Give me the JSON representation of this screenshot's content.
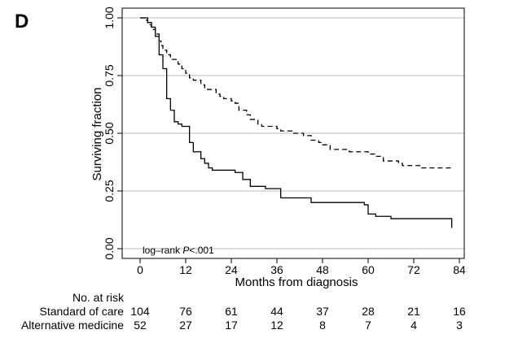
{
  "panel_label": "D",
  "chart_data": {
    "type": "line",
    "subtype": "kaplan-meier",
    "xlabel": "Months from diagnosis",
    "ylabel": "Surviving fraction",
    "xlim": [
      0,
      84
    ],
    "ylim": [
      0,
      1
    ],
    "x_ticks": [
      "0",
      "12",
      "24",
      "36",
      "48",
      "60",
      "72",
      "84"
    ],
    "y_ticks": [
      "0.00",
      "0.25",
      "0.50",
      "0.75",
      "1.00"
    ],
    "grid": "horizontal",
    "annotation": {
      "prefix": "log–rank ",
      "italic": "P",
      "suffix": "<.001"
    },
    "series": [
      {
        "style": "dashed",
        "color": "#000000",
        "points": [
          [
            0,
            1.0
          ],
          [
            1.5,
            0.99
          ],
          [
            2,
            0.97
          ],
          [
            3,
            0.96
          ],
          [
            3.5,
            0.95
          ],
          [
            4,
            0.93
          ],
          [
            5,
            0.9
          ],
          [
            5.5,
            0.88
          ],
          [
            6,
            0.86
          ],
          [
            7,
            0.84
          ],
          [
            8,
            0.82
          ],
          [
            10,
            0.8
          ],
          [
            11,
            0.78
          ],
          [
            12,
            0.76
          ],
          [
            13,
            0.74
          ],
          [
            14,
            0.73
          ],
          [
            16,
            0.71
          ],
          [
            17,
            0.69
          ],
          [
            20,
            0.67
          ],
          [
            21,
            0.66
          ],
          [
            22,
            0.65
          ],
          [
            24,
            0.64
          ],
          [
            25,
            0.63
          ],
          [
            26,
            0.6
          ],
          [
            28,
            0.58
          ],
          [
            29,
            0.56
          ],
          [
            31,
            0.54
          ],
          [
            32,
            0.53
          ],
          [
            36,
            0.52
          ],
          [
            37,
            0.51
          ],
          [
            40,
            0.5
          ],
          [
            43,
            0.49
          ],
          [
            45,
            0.47
          ],
          [
            47,
            0.46
          ],
          [
            48,
            0.45
          ],
          [
            50,
            0.43
          ],
          [
            55,
            0.42
          ],
          [
            60,
            0.41
          ],
          [
            62,
            0.4
          ],
          [
            64,
            0.38
          ],
          [
            68,
            0.37
          ],
          [
            69,
            0.36
          ],
          [
            74,
            0.35
          ],
          [
            82,
            0.35
          ]
        ]
      },
      {
        "style": "solid",
        "color": "#000000",
        "points": [
          [
            0,
            1.0
          ],
          [
            2,
            0.98
          ],
          [
            3,
            0.96
          ],
          [
            4,
            0.92
          ],
          [
            5,
            0.84
          ],
          [
            6,
            0.78
          ],
          [
            7,
            0.65
          ],
          [
            8,
            0.6
          ],
          [
            9,
            0.55
          ],
          [
            10,
            0.54
          ],
          [
            11,
            0.53
          ],
          [
            13,
            0.46
          ],
          [
            14,
            0.42
          ],
          [
            16,
            0.39
          ],
          [
            17,
            0.37
          ],
          [
            18,
            0.35
          ],
          [
            19,
            0.34
          ],
          [
            25,
            0.33
          ],
          [
            27,
            0.3
          ],
          [
            29,
            0.27
          ],
          [
            33,
            0.26
          ],
          [
            37,
            0.22
          ],
          [
            40,
            0.22
          ],
          [
            45,
            0.2
          ],
          [
            51,
            0.2
          ],
          [
            59,
            0.19
          ],
          [
            60,
            0.15
          ],
          [
            62,
            0.14
          ],
          [
            66,
            0.13
          ],
          [
            82,
            0.12
          ],
          [
            82,
            0.09
          ]
        ]
      }
    ]
  },
  "risk_table": {
    "title": "No. at risk",
    "rows": [
      {
        "label": "Standard of care",
        "values": [
          "104",
          "76",
          "61",
          "44",
          "37",
          "28",
          "21",
          "16"
        ]
      },
      {
        "label": "Alternative medicine",
        "values": [
          "52",
          "27",
          "17",
          "12",
          "8",
          "7",
          "4",
          "3"
        ]
      }
    ]
  }
}
